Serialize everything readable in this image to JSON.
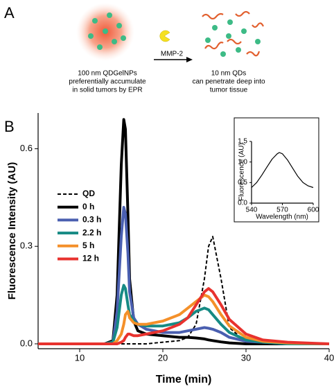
{
  "panel_labels": [
    "A",
    "B"
  ],
  "schematic": {
    "left_caption": [
      "100 nm QDGelNPs",
      "preferentially accumulate",
      "in solid tumors by EPR"
    ],
    "arrow_label": "MMP-2",
    "right_caption": [
      "10 nm QDs",
      "can penetrate deep into",
      "tumor tissue"
    ]
  },
  "chart_data": [
    {
      "type": "line",
      "x_label": "Time (min)",
      "y_label": "Fluorescence Intensity (AU)",
      "xlim": [
        5,
        40
      ],
      "xticks": [
        10,
        20,
        30,
        40
      ],
      "ylim": [
        -0.015,
        0.71
      ],
      "yticks": [
        {
          "value": 0,
          "label": "0.0"
        },
        0.3,
        0.6
      ],
      "legend": "left",
      "x": [
        5,
        10,
        13,
        14,
        14.5,
        15,
        15.3,
        15.5,
        15.8,
        16,
        16.5,
        17,
        18,
        20,
        22,
        23,
        24,
        25,
        25.5,
        26,
        27,
        28,
        30,
        32,
        35,
        40
      ],
      "series": [
        {
          "name": "QD",
          "color": "#000000",
          "dashed": true,
          "values": [
            0,
            0,
            0,
            0,
            0,
            0,
            0,
            0,
            0,
            0,
            0,
            0,
            0,
            0.005,
            0.01,
            0.02,
            0.06,
            0.2,
            0.3,
            0.33,
            0.2,
            0.05,
            0.005,
            0,
            0,
            0
          ]
        },
        {
          "name": "0 h",
          "color": "#000000",
          "values": [
            0,
            0,
            0,
            0.01,
            0.15,
            0.55,
            0.69,
            0.66,
            0.4,
            0.2,
            0.07,
            0.04,
            0.03,
            0.025,
            0.02,
            0.02,
            0.018,
            0.015,
            0.012,
            0.01,
            0.006,
            0.003,
            0,
            0,
            0,
            0
          ]
        },
        {
          "name": "0.3 h",
          "color": "#4a5fb0",
          "values": [
            0,
            0,
            0,
            0.005,
            0.1,
            0.33,
            0.42,
            0.4,
            0.28,
            0.16,
            0.08,
            0.06,
            0.045,
            0.035,
            0.035,
            0.04,
            0.045,
            0.05,
            0.048,
            0.045,
            0.035,
            0.02,
            0.008,
            0.005,
            0,
            0
          ]
        },
        {
          "name": "2.2 h",
          "color": "#168a84",
          "values": [
            0,
            0,
            0,
            0.005,
            0.05,
            0.15,
            0.18,
            0.17,
            0.12,
            0.09,
            0.07,
            0.06,
            0.055,
            0.055,
            0.065,
            0.08,
            0.1,
            0.11,
            0.105,
            0.09,
            0.06,
            0.035,
            0.012,
            0.005,
            0,
            0
          ]
        },
        {
          "name": "5 h",
          "color": "#f4902a",
          "values": [
            0,
            0,
            0,
            0,
            0.01,
            0.03,
            0.06,
            0.09,
            0.1,
            0.08,
            0.065,
            0.06,
            0.06,
            0.07,
            0.09,
            0.11,
            0.13,
            0.15,
            0.145,
            0.13,
            0.09,
            0.055,
            0.02,
            0.008,
            0.003,
            0
          ]
        },
        {
          "name": "12 h",
          "color": "#e8322e",
          "values": [
            0,
            0,
            0,
            0,
            0,
            0.005,
            0.01,
            0.02,
            0.03,
            0.03,
            0.025,
            0.025,
            0.03,
            0.04,
            0.06,
            0.08,
            0.12,
            0.16,
            0.17,
            0.16,
            0.12,
            0.075,
            0.03,
            0.012,
            0.005,
            0
          ]
        }
      ]
    },
    {
      "type": "line",
      "x_label": "Wavelength (nm)",
      "y_label": "Fluorescence (AU)",
      "xlim": [
        540,
        600
      ],
      "xticks": [
        540,
        570,
        600
      ],
      "ylim": [
        0,
        1.5
      ],
      "yticks": [
        {
          "value": 0,
          "label": "0.0"
        },
        0.5,
        {
          "value": 1,
          "label": "1.0"
        },
        1.5
      ],
      "x": [
        540,
        545,
        550,
        555,
        560,
        565,
        567,
        570,
        575,
        580,
        585,
        590,
        595,
        600
      ],
      "series": [
        {
          "color": "#000000",
          "values": [
            0.38,
            0.5,
            0.68,
            0.88,
            1.07,
            1.2,
            1.23,
            1.2,
            1.05,
            0.85,
            0.65,
            0.5,
            0.42,
            0.38
          ]
        }
      ]
    }
  ]
}
